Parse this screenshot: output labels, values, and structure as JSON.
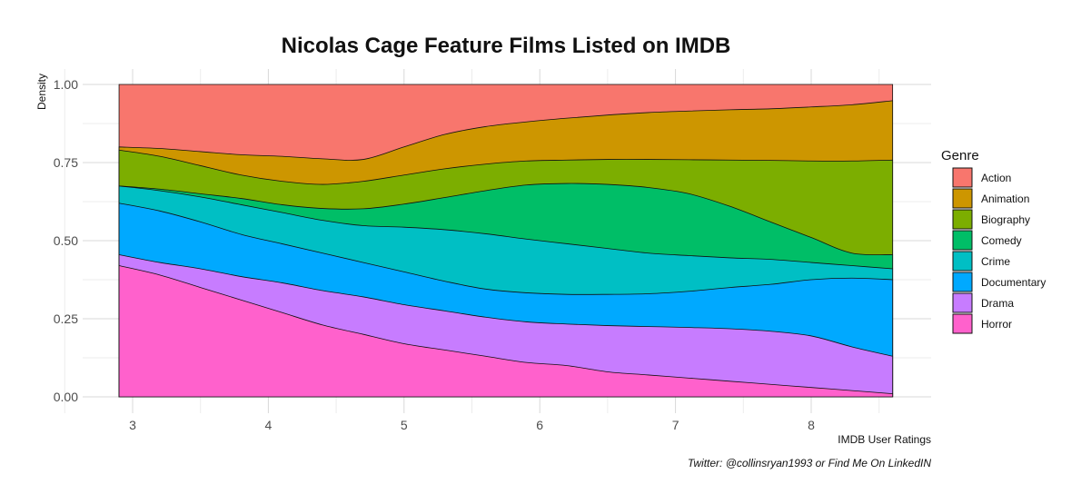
{
  "chart_data": {
    "type": "area",
    "subtype": "stacked-conditional-density",
    "title": "Nicolas Cage Feature Films Listed on IMDB",
    "xlabel": "IMDB User Ratings",
    "ylabel": "Density",
    "caption": "Twitter: @collinsryan1993 or Find Me On LinkedIN",
    "xlim": [
      2.9,
      8.6
    ],
    "ylim": [
      0,
      1
    ],
    "x_ticks": [
      3,
      4,
      5,
      6,
      7,
      8
    ],
    "y_ticks": [
      "0.00",
      "0.25",
      "0.50",
      "0.75",
      "1.00"
    ],
    "grid": true,
    "legend": {
      "title": "Genre",
      "position": "right"
    },
    "x": [
      2.9,
      3.2,
      3.5,
      3.8,
      4.1,
      4.4,
      4.7,
      5.0,
      5.3,
      5.6,
      5.9,
      6.2,
      6.5,
      6.8,
      7.1,
      7.4,
      7.7,
      8.0,
      8.3,
      8.6
    ],
    "cumulative": true,
    "series": [
      {
        "name": "Horror",
        "color": "#FF61CC",
        "values": [
          0.42,
          0.39,
          0.35,
          0.31,
          0.27,
          0.23,
          0.2,
          0.17,
          0.15,
          0.13,
          0.11,
          0.1,
          0.08,
          0.07,
          0.06,
          0.05,
          0.04,
          0.03,
          0.02,
          0.01
        ]
      },
      {
        "name": "Drama",
        "color": "#C77CFF",
        "values": [
          0.455,
          0.43,
          0.41,
          0.385,
          0.365,
          0.34,
          0.32,
          0.295,
          0.275,
          0.255,
          0.24,
          0.233,
          0.228,
          0.225,
          0.222,
          0.218,
          0.21,
          0.195,
          0.16,
          0.13
        ]
      },
      {
        "name": "Documentary",
        "color": "#00A9FF",
        "values": [
          0.62,
          0.595,
          0.56,
          0.52,
          0.49,
          0.46,
          0.43,
          0.4,
          0.37,
          0.345,
          0.333,
          0.328,
          0.328,
          0.33,
          0.338,
          0.35,
          0.36,
          0.375,
          0.38,
          0.375
        ]
      },
      {
        "name": "Crime",
        "color": "#00BFC4",
        "values": [
          0.675,
          0.66,
          0.64,
          0.615,
          0.59,
          0.565,
          0.548,
          0.543,
          0.535,
          0.522,
          0.505,
          0.49,
          0.475,
          0.46,
          0.452,
          0.445,
          0.44,
          0.43,
          0.42,
          0.41
        ]
      },
      {
        "name": "Comedy",
        "color": "#00BE67",
        "values": [
          0.675,
          0.665,
          0.65,
          0.635,
          0.615,
          0.603,
          0.602,
          0.617,
          0.638,
          0.66,
          0.678,
          0.683,
          0.68,
          0.67,
          0.65,
          0.61,
          0.56,
          0.51,
          0.46,
          0.455
        ]
      },
      {
        "name": "Biography",
        "color": "#7CAE00",
        "values": [
          0.79,
          0.77,
          0.74,
          0.71,
          0.69,
          0.68,
          0.69,
          0.71,
          0.73,
          0.745,
          0.755,
          0.758,
          0.76,
          0.76,
          0.759,
          0.758,
          0.757,
          0.755,
          0.755,
          0.758
        ]
      },
      {
        "name": "Animation",
        "color": "#CD9600",
        "values": [
          0.8,
          0.795,
          0.785,
          0.775,
          0.77,
          0.762,
          0.76,
          0.8,
          0.84,
          0.865,
          0.88,
          0.892,
          0.902,
          0.91,
          0.915,
          0.919,
          0.922,
          0.928,
          0.935,
          0.948
        ]
      },
      {
        "name": "Action",
        "color": "#F8766D",
        "values": [
          1,
          1,
          1,
          1,
          1,
          1,
          1,
          1,
          1,
          1,
          1,
          1,
          1,
          1,
          1,
          1,
          1,
          1,
          1,
          1
        ]
      }
    ]
  }
}
